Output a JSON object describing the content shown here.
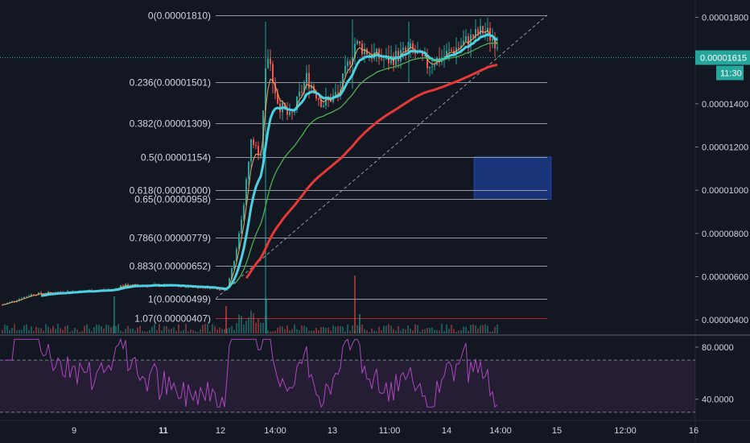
{
  "chart_data": {
    "type": "candlestick",
    "price_axis": {
      "ticks": [
        "0.00001800",
        "0.00001600",
        "0.00001400",
        "0.00001200",
        "0.00001000",
        "0.00000800",
        "0.00000600",
        "0.00000400"
      ],
      "tick_values": [
        1.8e-05,
        1.6e-05,
        1.4e-05,
        1.2e-05,
        1e-05,
        8e-06,
        6e-06,
        4e-06
      ],
      "range": [
        3.3e-06,
        1.88e-05
      ]
    },
    "current_price": {
      "label": "0.00001615",
      "value": 1.615e-05,
      "countdown": "11:30",
      "color": "#26a69a"
    },
    "fib_levels": [
      {
        "label": "0(0.00001810)",
        "value": 1.81e-05,
        "color": "#9598a1"
      },
      {
        "label": "0.236(0.00001501)",
        "value": 1.501e-05,
        "color": "#9598a1"
      },
      {
        "label": "0.382(0.00001309)",
        "value": 1.309e-05,
        "color": "#9598a1"
      },
      {
        "label": "0.5(0.00001154)",
        "value": 1.154e-05,
        "color": "#9598a1"
      },
      {
        "label": "0.618(0.00001000)",
        "value": 1e-05,
        "color": "#9598a1"
      },
      {
        "label": "0.65(0.00000958)",
        "value": 9.58e-06,
        "color": "#9598a1"
      },
      {
        "label": "0.786(0.00000779)",
        "value": 7.79e-06,
        "color": "#9598a1"
      },
      {
        "label": "0.883(0.00000652)",
        "value": 6.52e-06,
        "color": "#9598a1"
      },
      {
        "label": "1(0.00000499)",
        "value": 4.99e-06,
        "color": "#9598a1"
      },
      {
        "label": "1.07(0.00000407)",
        "value": 4.07e-06,
        "color": "#b22833"
      }
    ],
    "highlight_zone": {
      "price_top": 1.154e-05,
      "price_bottom": 9.58e-06,
      "color": "#1c3f95"
    },
    "time_axis": {
      "labels": [
        {
          "text": "9",
          "bold": false
        },
        {
          "text": "11",
          "bold": true
        },
        {
          "text": "12",
          "bold": false
        },
        {
          "text": "14:00",
          "bold": false
        },
        {
          "text": "13",
          "bold": false
        },
        {
          "text": "11:00",
          "bold": false
        },
        {
          "text": "14",
          "bold": false
        },
        {
          "text": "14:00",
          "bold": false
        },
        {
          "text": "15",
          "bold": false
        },
        {
          "text": "12:00",
          "bold": false
        },
        {
          "text": "16",
          "bold": false
        }
      ]
    },
    "moving_averages": [
      {
        "color": "#f7a35c",
        "period": "fast"
      },
      {
        "color": "#4dd0e1",
        "period": "medium"
      },
      {
        "color": "#4caf50",
        "period": "slow"
      },
      {
        "color": "#e53935",
        "period": "long"
      }
    ],
    "rsi": {
      "ticks": [
        "80.0000",
        "40.0000"
      ],
      "tick_values": [
        80,
        40
      ],
      "upper_band": 70,
      "lower_band": 30,
      "range": [
        25,
        88
      ],
      "color": "#ab47bc"
    },
    "colors": {
      "background": "#131722",
      "up": "#26a69a",
      "down": "#ef5350"
    }
  }
}
